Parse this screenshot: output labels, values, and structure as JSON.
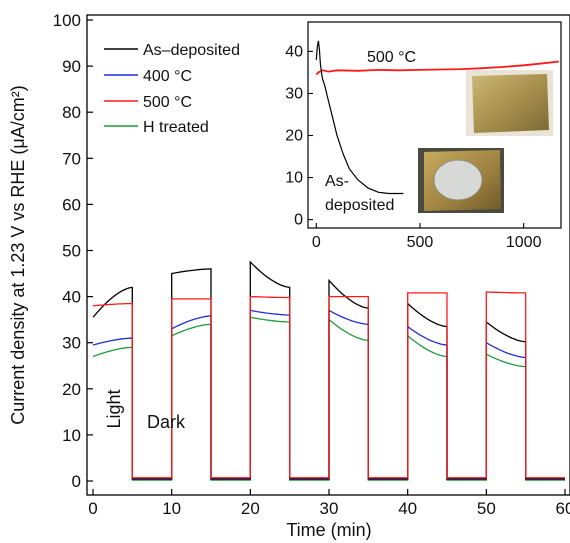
{
  "chart_data": [
    {
      "type": "line",
      "xlabel": "Time (min)",
      "ylabel": "Current density at 1.23 V vs RHE (μA/cm²)",
      "xlim": [
        0,
        60
      ],
      "ylim": [
        0,
        100
      ],
      "xticks": [
        "0",
        "10",
        "20",
        "30",
        "40",
        "50",
        "60"
      ],
      "yticks": [
        "0",
        "10",
        "20",
        "30",
        "40",
        "50",
        "60",
        "70",
        "80",
        "90",
        "100"
      ],
      "legend_position": "top-left",
      "annotations": [
        {
          "text": "Light",
          "x": 1.3,
          "y": 10
        },
        {
          "text": "Dark",
          "x": 6.3,
          "y": 6
        }
      ],
      "cycles_light_start": [
        0,
        10,
        20,
        30,
        40,
        50
      ],
      "cycles_light_end": [
        5,
        15,
        25,
        35,
        45,
        55
      ],
      "series": [
        {
          "name": "As–deposited",
          "color": "#000000",
          "light_start": [
            35.5,
            45,
            47.5,
            43.5,
            38.5,
            34.5
          ],
          "light_end": [
            42,
            46,
            42,
            37.5,
            33.5,
            30.2
          ],
          "dark": 0.5
        },
        {
          "name": "400 °C",
          "color": "#1f2fd6",
          "light_start": [
            29.5,
            33,
            37,
            37,
            33.5,
            30
          ],
          "light_end": [
            31,
            35.8,
            36,
            34,
            29.5,
            26.8
          ],
          "dark": 0.4
        },
        {
          "name": "500 °C",
          "color": "#ff1a1a",
          "light_start": [
            38,
            39.5,
            40,
            40,
            40.8,
            41
          ],
          "light_end": [
            38.5,
            39.5,
            39.8,
            40,
            40.8,
            40.8
          ],
          "dark": 0.7
        },
        {
          "name": "H treated",
          "color": "#1a9e3a",
          "light_start": [
            27,
            31.5,
            35.5,
            35,
            31.5,
            27.5
          ],
          "light_end": [
            29,
            34,
            34.5,
            30.5,
            27,
            24.8
          ],
          "dark": 0.2
        }
      ]
    },
    {
      "type": "line",
      "title": "",
      "xlim": [
        -40,
        1180
      ],
      "ylim": [
        -2,
        47
      ],
      "xticks": [
        "0",
        "500",
        "1000"
      ],
      "yticks": [
        "0",
        "10",
        "20",
        "30",
        "40"
      ],
      "annotations": [
        {
          "text": "500 °C",
          "x": 620,
          "y": 40
        },
        {
          "text": "As-",
          "x": 55,
          "y": 8
        },
        {
          "text": "deposited",
          "x": 55,
          "y": 2.5
        }
      ],
      "series": [
        {
          "name": "500 °C",
          "color": "#ff1a1a",
          "x": [
            0,
            10,
            30,
            60,
            100,
            200,
            300,
            400,
            500,
            600,
            700,
            800,
            900,
            1000,
            1100,
            1170
          ],
          "y": [
            34.5,
            35,
            35.5,
            35.2,
            35.5,
            35.4,
            35.6,
            35.5,
            35.6,
            35.7,
            35.8,
            36,
            36.3,
            36.7,
            37.2,
            37.6
          ]
        },
        {
          "name": "As-deposited",
          "color": "#000000",
          "x": [
            0,
            5,
            10,
            15,
            20,
            25,
            30,
            40,
            60,
            80,
            100,
            130,
            160,
            200,
            250,
            300,
            350,
            420
          ],
          "y": [
            38,
            41,
            42.5,
            40.5,
            37,
            35,
            33.5,
            32,
            28,
            24,
            20,
            15.5,
            12,
            9.5,
            7.5,
            6.5,
            6.2,
            6.2
          ]
        }
      ]
    }
  ]
}
